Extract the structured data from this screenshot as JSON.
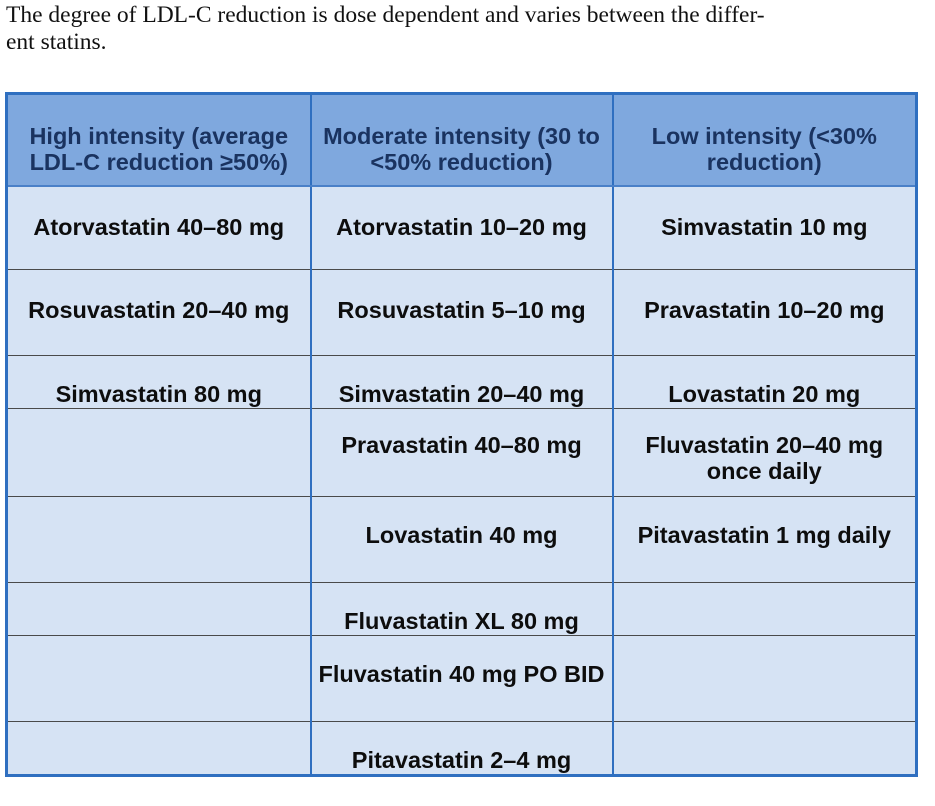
{
  "intro": {
    "line1": "The degree of LDL-C reduction is dose dependent and varies between the differ-",
    "line2": "ent statins."
  },
  "table": {
    "headers": [
      "High intensity (average LDL-C reduction ≥50%)",
      "Moderate intensity (30 to <50% reduction)",
      "Low intensity (<30% reduction)"
    ],
    "rows": [
      [
        "Atorvastatin 40–80 mg",
        "Atorvastatin 10–20 mg",
        "Simvastatin 10 mg"
      ],
      [
        "Rosuvastatin 20–40 mg",
        "Rosuvastatin 5–10 mg",
        "Pravastatin 10–20 mg"
      ],
      [
        "Simvastatin 80 mg",
        "Simvastatin 20–40 mg",
        "Lovastatin 20 mg"
      ],
      [
        "",
        "Pravastatin 40–80 mg",
        "Fluvastatin 20–40 mg once daily"
      ],
      [
        "",
        "Lovastatin 40 mg",
        "Pitavastatin 1 mg daily"
      ],
      [
        "",
        "Fluvastatin XL 80 mg",
        ""
      ],
      [
        "",
        "Fluvastatin 40 mg PO BID",
        ""
      ],
      [
        "",
        "Pitavastatin 2–4 mg",
        ""
      ]
    ]
  }
}
